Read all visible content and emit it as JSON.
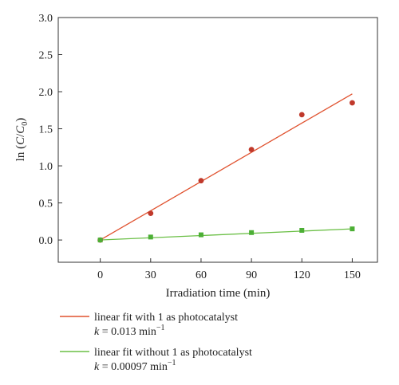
{
  "chart_data": {
    "type": "scatter",
    "xlabel": "Irradiation time (min)",
    "ylabel_parts": {
      "prefix": "ln (",
      "c": "C",
      "slash": "/",
      "c0": "C",
      "sub0": "0",
      "suffix": ")"
    },
    "xlim": [
      -25,
      165
    ],
    "ylim": [
      -0.3,
      3.0
    ],
    "xticks": [
      0,
      30,
      60,
      90,
      120,
      150
    ],
    "yticks": [
      0.0,
      0.5,
      1.0,
      1.5,
      2.0,
      2.5,
      3.0
    ],
    "xtick_labels": [
      "0",
      "30",
      "60",
      "90",
      "120",
      "150"
    ],
    "ytick_labels": [
      "0.0",
      "0.5",
      "1.0",
      "1.5",
      "2.0",
      "2.5",
      "3.0"
    ],
    "series": [
      {
        "marker": "circle",
        "color": "#c0392b",
        "x": [
          0,
          30,
          60,
          90,
          120,
          150
        ],
        "y": [
          0.0,
          0.36,
          0.8,
          1.22,
          1.69,
          1.85
        ],
        "fit": {
          "x": [
            0,
            150
          ],
          "y": [
            0.0,
            1.97
          ]
        },
        "line_color": "#e0522f"
      },
      {
        "marker": "square",
        "color": "#4caf35",
        "x": [
          0,
          30,
          60,
          90,
          120,
          150
        ],
        "y": [
          0.0,
          0.04,
          0.07,
          0.1,
          0.13,
          0.15
        ],
        "fit": {
          "x": [
            0,
            150
          ],
          "y": [
            0.0,
            0.15
          ]
        },
        "line_color": "#6abf45"
      }
    ],
    "legend": [
      {
        "label": "linear fit with 1 as photocatalyst",
        "k_symbol": "k",
        "k_eq": " = 0.013 min",
        "k_exp": "−1",
        "color": "#e0522f"
      },
      {
        "label": "linear fit without 1 as photocatalyst",
        "k_symbol": "k",
        "k_eq": " = 0.00097 min",
        "k_exp": "−1",
        "color": "#6abf45"
      }
    ]
  }
}
